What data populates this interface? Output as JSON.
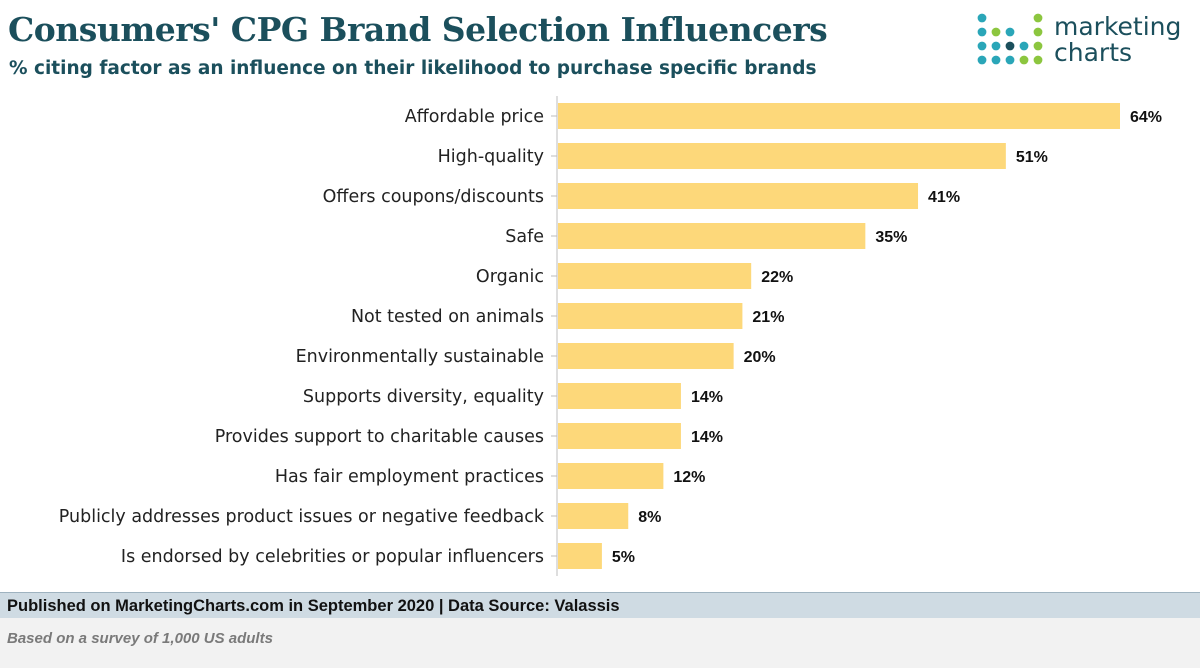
{
  "header": {
    "title": "Consumers' CPG Brand Selection Influencers",
    "subtitle": "% citing factor as an influence on their likelihood to purchase specific brands"
  },
  "logo": {
    "line1": "marketing",
    "line2": "charts",
    "colors": {
      "teal": "#2aa6b8",
      "green": "#8cc63f",
      "navy": "#1b4f5c"
    }
  },
  "chart_data": {
    "type": "bar",
    "orientation": "horizontal",
    "title": "Consumers' CPG Brand Selection Influencers",
    "subtitle": "% citing factor as an influence on their likelihood to purchase specific brands",
    "xlabel": "",
    "ylabel": "",
    "xlim": [
      0,
      64
    ],
    "grid": false,
    "bar_color": "#fdd87a",
    "categories": [
      "Affordable price",
      "High-quality",
      "Offers coupons/discounts",
      "Safe",
      "Organic",
      "Not tested on animals",
      "Environmentally  sustainable",
      "Supports diversity, equality",
      "Provides support to charitable causes",
      "Has fair employment practices",
      "Publicly addresses product issues or negative  feedback",
      "Is endorsed by celebrities or popular influencers"
    ],
    "values": [
      64,
      51,
      41,
      35,
      22,
      21,
      20,
      14,
      14,
      12,
      8,
      5
    ],
    "value_labels": [
      "64%",
      "51%",
      "41%",
      "35%",
      "22%",
      "21%",
      "20%",
      "14%",
      "14%",
      "12%",
      "8%",
      "5%"
    ]
  },
  "footer": {
    "published": "Published on MarketingCharts.com in September 2020 | Data Source: Valassis",
    "note": "Based on a survey of 1,000 US adults"
  }
}
